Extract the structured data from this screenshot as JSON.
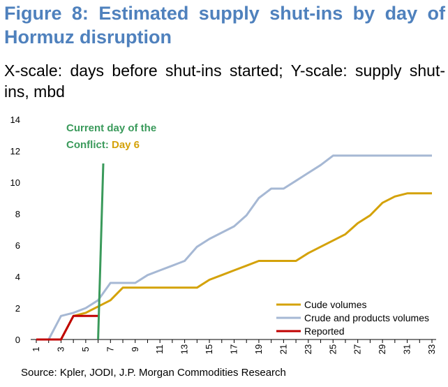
{
  "title": "Figure 8: Estimated supply shut-ins by day of Hormuz disruption",
  "subtitle": "X-scale: days before shut-ins started; Y-scale: supply shut-ins, mbd",
  "source": "Source: Kpler, JODI, J.P. Morgan Commodities Research",
  "annotation": {
    "line1": "Current day of the",
    "line2_prefix": "Conflict: ",
    "line2_highlight": "Day 6",
    "color_text": "#3a9a5b",
    "color_highlight": "#d4a20a"
  },
  "chart_data": {
    "type": "line",
    "title": "Figure 8: Estimated supply shut-ins by day of Hormuz disruption",
    "xlabel": "days before shut-ins started",
    "ylabel": "supply shut-ins, mbd",
    "ylim": [
      0,
      14
    ],
    "yticks": [
      0,
      2,
      4,
      6,
      8,
      10,
      12,
      14
    ],
    "xlim": [
      1,
      33
    ],
    "x": [
      1,
      2,
      3,
      4,
      5,
      6,
      7,
      8,
      9,
      10,
      11,
      12,
      13,
      14,
      15,
      16,
      17,
      18,
      19,
      20,
      21,
      22,
      23,
      24,
      25,
      26,
      27,
      28,
      29,
      30,
      31,
      32,
      33
    ],
    "xtick_labels": [
      "1",
      "3",
      "5",
      "7",
      "9",
      "11",
      "13",
      "15",
      "17",
      "19",
      "21",
      "23",
      "25",
      "27",
      "29",
      "31",
      "33"
    ],
    "grid": false,
    "legend_position": "bottom-right",
    "series": [
      {
        "name": "Cude volumes",
        "color": "#d4a20a",
        "values": [
          0,
          0,
          0,
          1.5,
          1.7,
          2.1,
          2.5,
          3.3,
          3.3,
          3.3,
          3.3,
          3.3,
          3.3,
          3.3,
          3.8,
          4.1,
          4.4,
          4.7,
          5.0,
          5.0,
          5.0,
          5.0,
          5.5,
          5.9,
          6.3,
          6.7,
          7.4,
          7.9,
          8.7,
          9.1,
          9.3,
          9.3,
          9.3
        ]
      },
      {
        "name": "Crude and products volumes",
        "color": "#a6b8d4",
        "values": [
          0,
          0,
          1.5,
          1.7,
          2.0,
          2.5,
          3.6,
          3.6,
          3.6,
          4.1,
          4.4,
          4.7,
          5.0,
          5.9,
          6.4,
          6.8,
          7.2,
          7.9,
          9.0,
          9.6,
          9.6,
          10.1,
          10.6,
          11.1,
          11.7,
          11.7,
          11.7,
          11.7,
          11.7,
          11.7,
          11.7,
          11.7,
          11.7
        ]
      },
      {
        "name": "Reported",
        "color": "#c00000",
        "values": [
          0,
          0,
          0,
          1.5,
          1.5,
          1.5,
          null,
          null,
          null,
          null,
          null,
          null,
          null,
          null,
          null,
          null,
          null,
          null,
          null,
          null,
          null,
          null,
          null,
          null,
          null,
          null,
          null,
          null,
          null,
          null,
          null,
          null,
          null
        ]
      }
    ],
    "current_day_marker": {
      "x": 6,
      "color": "#3a9a5b"
    }
  }
}
